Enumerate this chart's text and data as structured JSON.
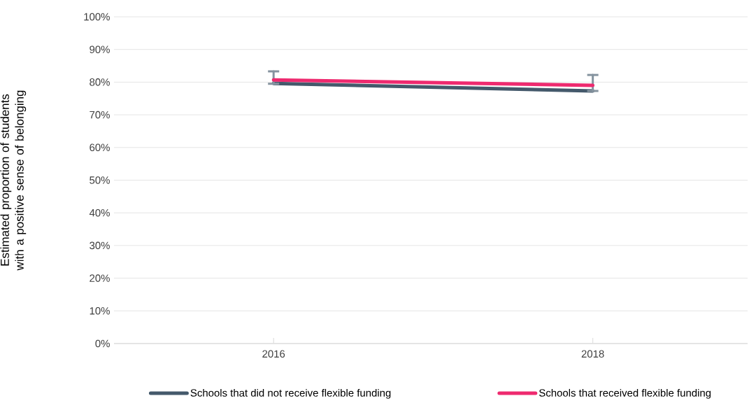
{
  "chart_data": {
    "type": "line",
    "ylabel": "Estimated proportion of students with a positive sense of belonging",
    "categories": [
      "2016",
      "2018"
    ],
    "series": [
      {
        "name": "Schools that did not receive flexible funding",
        "color": "#44596b",
        "values": [
          79.6,
          77.3
        ],
        "errors": [
          [
            79.5,
            83.3
          ],
          [
            77.3,
            82.2
          ]
        ]
      },
      {
        "name": "Schools that received flexible funding",
        "color": "#ee2a6f",
        "values": [
          80.7,
          79.0
        ]
      }
    ],
    "ylim": [
      0,
      100
    ],
    "yticks": [
      {
        "value": 0,
        "label": "0%"
      },
      {
        "value": 10,
        "label": "10%"
      },
      {
        "value": 20,
        "label": "20%"
      },
      {
        "value": 30,
        "label": "30%"
      },
      {
        "value": 40,
        "label": "40%"
      },
      {
        "value": 50,
        "label": "50%"
      },
      {
        "value": 60,
        "label": "60%"
      },
      {
        "value": 70,
        "label": "70%"
      },
      {
        "value": 80,
        "label": "80%"
      },
      {
        "value": 90,
        "label": "90%"
      },
      {
        "value": 100,
        "label": "100%"
      }
    ],
    "grid": "y",
    "legend": "bottom",
    "marker": "none",
    "line_style": "solid"
  }
}
